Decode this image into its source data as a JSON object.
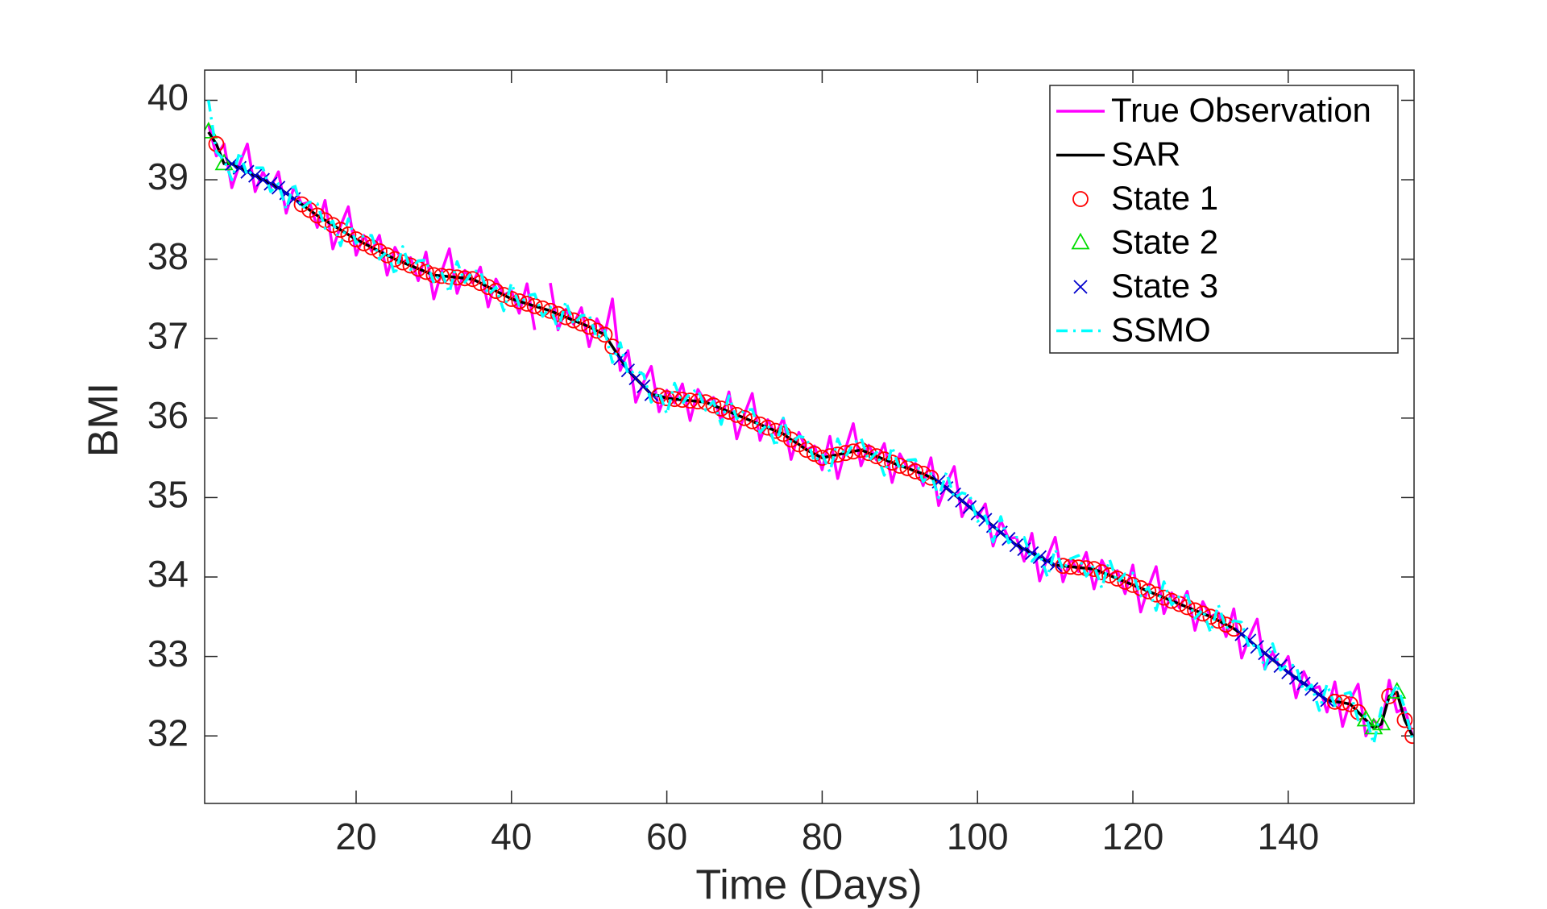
{
  "chart_data": {
    "type": "line",
    "xlabel": "Time (Days)",
    "ylabel": "BMI",
    "xlim": [
      0.5,
      156.2
    ],
    "ylim": [
      31.15,
      40.38
    ],
    "xticks": [
      20,
      40,
      60,
      80,
      100,
      120,
      140
    ],
    "yticks": [
      32,
      33,
      34,
      35,
      36,
      37,
      38,
      39,
      40
    ],
    "legend": "upper right",
    "grid": false,
    "x": [
      1,
      2,
      3,
      4,
      5,
      6,
      7,
      8,
      9,
      10,
      11,
      12,
      13,
      14,
      15,
      16,
      17,
      18,
      19,
      20,
      21,
      22,
      23,
      24,
      25,
      26,
      27,
      28,
      29,
      30,
      31,
      32,
      33,
      34,
      35,
      36,
      37,
      38,
      39,
      40,
      41,
      42,
      43,
      44,
      45,
      46,
      47,
      48,
      49,
      50,
      51,
      52,
      53,
      54,
      55,
      56,
      57,
      58,
      59,
      60,
      61,
      62,
      63,
      64,
      65,
      66,
      67,
      68,
      69,
      70,
      71,
      72,
      73,
      74,
      75,
      76,
      77,
      78,
      79,
      80,
      81,
      82,
      83,
      84,
      85,
      86,
      87,
      88,
      89,
      90,
      91,
      92,
      93,
      94,
      95,
      96,
      97,
      98,
      99,
      100,
      101,
      102,
      103,
      104,
      105,
      106,
      107,
      108,
      109,
      110,
      111,
      112,
      113,
      114,
      115,
      116,
      117,
      118,
      119,
      120,
      121,
      122,
      123,
      124,
      125,
      126,
      127,
      128,
      129,
      130,
      131,
      132,
      133,
      134,
      135,
      136,
      137,
      138,
      139,
      140,
      141,
      142,
      143,
      144,
      145,
      146,
      147,
      148,
      149,
      150,
      151,
      152,
      153,
      154,
      155,
      156
    ],
    "series": [
      {
        "name": "True Observation",
        "color": "#ff00ff",
        "dash": "solid",
        "values": [
          39.7,
          39.3,
          39.45,
          38.9,
          39.2,
          39.45,
          38.85,
          39.1,
          38.9,
          39.1,
          38.58,
          38.91,
          38.69,
          38.72,
          38.4,
          38.74,
          38.13,
          38.42,
          38.66,
          38.05,
          38.3,
          38.1,
          38.3,
          37.8,
          38.15,
          37.96,
          38.02,
          37.73,
          38.09,
          37.5,
          37.84,
          38.13,
          37.57,
          37.86,
          37.7,
          37.9,
          37.4,
          37.75,
          37.55,
          37.6,
          37.32,
          37.69,
          37.11,
          null,
          37.7,
          37.11,
          37.37,
          37.18,
          37.39,
          36.9,
          37.25,
          37.05,
          37.5,
          36.6,
          36.85,
          36.2,
          36.45,
          36.65,
          36.08,
          36.35,
          36.19,
          36.43,
          35.97,
          36.36,
          36.2,
          36.26,
          35.97,
          36.33,
          35.74,
          36.05,
          36.31,
          35.72,
          35.98,
          35.79,
          36.0,
          35.48,
          35.82,
          35.6,
          35.65,
          35.35,
          35.77,
          35.24,
          35.61,
          35.93,
          35.4,
          35.66,
          35.47,
          35.68,
          35.19,
          35.55,
          35.37,
          35.43,
          35.15,
          35.5,
          34.9,
          35.17,
          35.39,
          34.76,
          34.98,
          34.75,
          34.92,
          34.39,
          34.71,
          34.48,
          34.5,
          34.2,
          34.55,
          33.95,
          34.25,
          34.5,
          33.94,
          34.23,
          34.07,
          34.31,
          33.85,
          34.21,
          34.02,
          34.08,
          33.79,
          34.15,
          33.56,
          33.87,
          34.13,
          33.54,
          33.8,
          33.61,
          33.82,
          33.33,
          33.69,
          33.5,
          33.55,
          33.25,
          33.6,
          32.98,
          33.25,
          33.47,
          32.84,
          33.06,
          32.83,
          33.0,
          32.48,
          32.81,
          32.59,
          32.62,
          32.3,
          32.68,
          32.12,
          32.45,
          32.65,
          32.0,
          32.2,
          32.1,
          32.7,
          32.3,
          32.35,
          32.0
        ]
      },
      {
        "name": "SAR",
        "color": "#000000",
        "dash": "solid",
        "values": [
          39.6,
          39.45,
          39.2,
          39.2,
          39.15,
          39.1,
          39.05,
          39.0,
          38.95,
          38.9,
          38.83,
          38.76,
          38.69,
          38.62,
          38.55,
          38.49,
          38.43,
          38.37,
          38.31,
          38.25,
          38.2,
          38.15,
          38.1,
          38.05,
          38.0,
          37.96,
          37.92,
          37.88,
          37.84,
          37.8,
          37.79,
          37.78,
          37.77,
          37.76,
          37.75,
          37.7,
          37.65,
          37.6,
          37.55,
          37.5,
          37.47,
          37.44,
          37.41,
          37.38,
          37.35,
          37.31,
          37.27,
          37.23,
          37.19,
          37.15,
          37.1,
          37.05,
          36.9,
          36.75,
          36.6,
          36.5,
          36.4,
          36.3,
          36.28,
          36.25,
          36.24,
          36.23,
          36.22,
          36.21,
          36.2,
          36.16,
          36.12,
          36.08,
          36.04,
          36.0,
          35.96,
          35.92,
          35.88,
          35.84,
          35.8,
          35.73,
          35.67,
          35.6,
          35.55,
          35.5,
          35.52,
          35.54,
          35.56,
          35.58,
          35.6,
          35.56,
          35.52,
          35.48,
          35.44,
          35.4,
          35.37,
          35.33,
          35.3,
          35.25,
          35.2,
          35.12,
          35.04,
          34.96,
          34.88,
          34.8,
          34.72,
          34.64,
          34.56,
          34.48,
          34.4,
          34.35,
          34.3,
          34.25,
          34.2,
          34.15,
          34.14,
          34.13,
          34.12,
          34.11,
          34.1,
          34.06,
          34.02,
          33.98,
          33.94,
          33.9,
          33.86,
          33.82,
          33.78,
          33.74,
          33.7,
          33.66,
          33.62,
          33.58,
          33.54,
          33.5,
          33.45,
          33.4,
          33.35,
          33.28,
          33.2,
          33.12,
          33.04,
          32.96,
          32.88,
          32.8,
          32.73,
          32.66,
          32.59,
          32.52,
          32.45,
          32.43,
          32.42,
          32.4,
          32.3,
          32.2,
          32.1,
          32.15,
          32.5,
          32.55,
          32.2,
          32.0
        ],
        "states": [
          2,
          1,
          2,
          3,
          3,
          3,
          3,
          3,
          3,
          3,
          3,
          3,
          1,
          1,
          1,
          1,
          1,
          1,
          1,
          1,
          1,
          1,
          1,
          1,
          1,
          1,
          1,
          1,
          1,
          1,
          1,
          1,
          1,
          1,
          1,
          1,
          1,
          1,
          1,
          1,
          1,
          1,
          1,
          1,
          1,
          1,
          1,
          1,
          1,
          1,
          1,
          1,
          1,
          3,
          3,
          3,
          3,
          3,
          1,
          1,
          1,
          1,
          1,
          1,
          1,
          1,
          1,
          1,
          1,
          1,
          1,
          1,
          1,
          1,
          1,
          1,
          1,
          1,
          1,
          1,
          1,
          1,
          1,
          1,
          1,
          1,
          1,
          1,
          1,
          1,
          1,
          1,
          1,
          1,
          3,
          3,
          3,
          3,
          3,
          3,
          3,
          3,
          3,
          3,
          3,
          3,
          3,
          3,
          3,
          3,
          1,
          1,
          1,
          1,
          1,
          1,
          1,
          1,
          1,
          1,
          1,
          1,
          1,
          1,
          1,
          1,
          1,
          1,
          1,
          1,
          1,
          1,
          1,
          3,
          3,
          3,
          3,
          3,
          3,
          3,
          3,
          3,
          3,
          3,
          3,
          1,
          1,
          1,
          1,
          2,
          2,
          2,
          1,
          2,
          1,
          1
        ]
      },
      {
        "name": "SSMO",
        "color": "#00ffff",
        "dash": "dashdot",
        "values": [
          40.0,
          39.35,
          39.25,
          39.0,
          39.35,
          39.05,
          39.15,
          39.15,
          38.85,
          38.95,
          38.63,
          38.96,
          38.64,
          38.72,
          38.7,
          38.39,
          38.48,
          38.17,
          38.51,
          38.2,
          38.3,
          38.3,
          38.0,
          38.1,
          37.8,
          38.16,
          37.87,
          37.98,
          37.99,
          37.7,
          37.84,
          37.58,
          37.97,
          37.71,
          37.85,
          37.85,
          37.55,
          37.65,
          37.35,
          37.7,
          37.42,
          37.54,
          37.56,
          37.28,
          37.4,
          37.11,
          37.47,
          37.18,
          37.29,
          37.3,
          37.0,
          37.1,
          36.7,
          36.95,
          36.55,
          36.6,
          36.55,
          36.2,
          36.33,
          36.05,
          36.44,
          36.18,
          36.32,
          36.36,
          36.1,
          36.21,
          35.92,
          36.28,
          35.99,
          36.1,
          36.11,
          35.82,
          35.93,
          35.64,
          36.0,
          35.68,
          35.77,
          35.75,
          35.45,
          35.55,
          35.32,
          35.74,
          35.51,
          35.68,
          35.75,
          35.46,
          35.57,
          35.28,
          35.64,
          35.35,
          35.47,
          35.48,
          35.2,
          35.3,
          35.0,
          35.32,
          34.99,
          35.06,
          35.03,
          34.7,
          34.77,
          34.44,
          34.76,
          34.43,
          34.5,
          34.5,
          34.2,
          34.3,
          34.0,
          34.35,
          34.09,
          34.23,
          34.27,
          34.01,
          34.15,
          33.86,
          34.22,
          33.93,
          34.04,
          34.05,
          33.76,
          33.87,
          33.58,
          33.94,
          33.65,
          33.76,
          33.77,
          33.48,
          33.59,
          33.3,
          33.65,
          33.35,
          33.45,
          33.43,
          33.1,
          33.17,
          32.84,
          33.16,
          32.83,
          32.9,
          32.88,
          32.56,
          32.64,
          32.32,
          32.65,
          32.38,
          32.52,
          32.55,
          32.2,
          32.25,
          31.9,
          32.35,
          32.45,
          32.65,
          32.35,
          31.95
        ]
      }
    ],
    "markers": [
      {
        "name": "State 1",
        "state": 1,
        "color": "#ff0000",
        "marker": "circle"
      },
      {
        "name": "State 2",
        "state": 2,
        "color": "#00dd00",
        "marker": "triangle"
      },
      {
        "name": "State 3",
        "state": 3,
        "color": "#0000cc",
        "marker": "cross"
      }
    ]
  }
}
